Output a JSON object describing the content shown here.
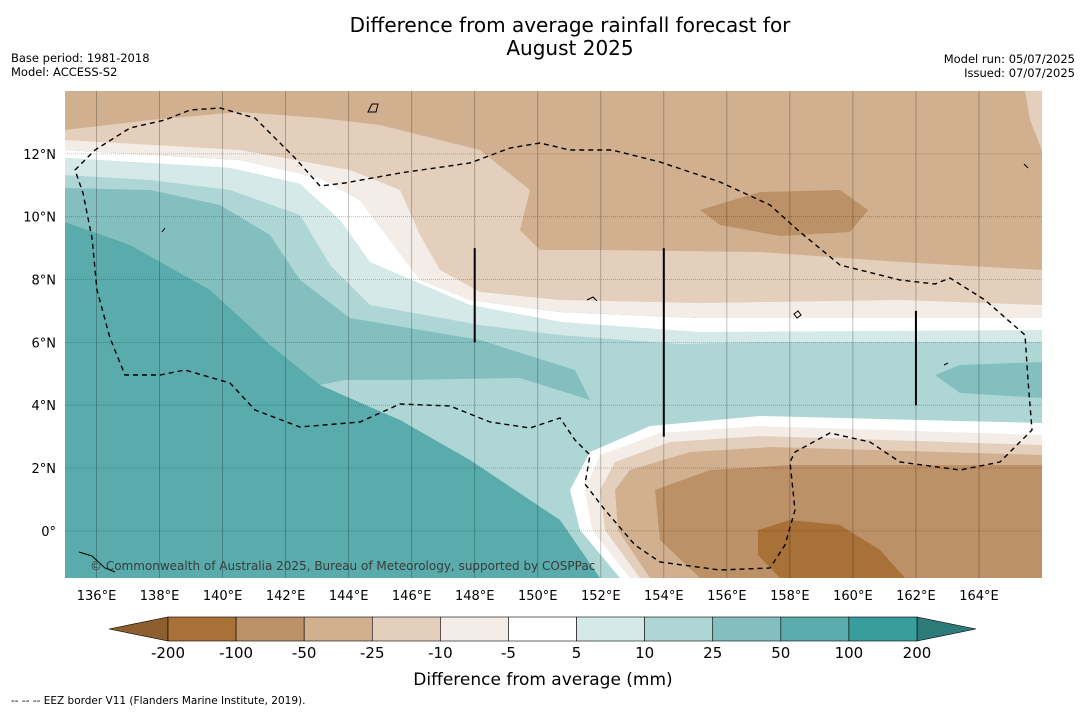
{
  "title": "Difference from average rainfall forecast for\nAugust 2025",
  "title_line1": "Difference from average rainfall forecast for",
  "title_line2": "August 2025",
  "info_left": [
    "Base period: 1981-2018",
    "Model: ACCESS-S2"
  ],
  "info_right": [
    "Model run: 05/07/2025",
    "Issued: 07/07/2025"
  ],
  "copyright": "© Commonwealth of Australia 2025, Bureau of Meteorology, supported by COSPPac",
  "footnote": "--  --  -- EEZ border V11 (Flanders Marine Institute, 2019).",
  "map": {
    "lon_range": [
      135,
      166
    ],
    "lat_range": [
      -1.5,
      14
    ],
    "lon_ticks": [
      {
        "value": 136,
        "label": "136°E"
      },
      {
        "value": 138,
        "label": "138°E"
      },
      {
        "value": 140,
        "label": "140°E"
      },
      {
        "value": 142,
        "label": "142°E"
      },
      {
        "value": 144,
        "label": "144°E"
      },
      {
        "value": 146,
        "label": "146°E"
      },
      {
        "value": 148,
        "label": "148°E"
      },
      {
        "value": 150,
        "label": "150°E"
      },
      {
        "value": 152,
        "label": "152°E"
      },
      {
        "value": 154,
        "label": "154°E"
      },
      {
        "value": 156,
        "label": "156°E"
      },
      {
        "value": 158,
        "label": "158°E"
      },
      {
        "value": 160,
        "label": "160°E"
      },
      {
        "value": 162,
        "label": "162°E"
      },
      {
        "value": 164,
        "label": "164°E"
      }
    ],
    "lat_ticks": [
      {
        "value": 12,
        "label": "12°N"
      },
      {
        "value": 10,
        "label": "10°N"
      },
      {
        "value": 8,
        "label": "8°N"
      },
      {
        "value": 6,
        "label": "6°N"
      },
      {
        "value": 4,
        "label": "4°N"
      },
      {
        "value": 2,
        "label": "2°N"
      },
      {
        "value": 0,
        "label": "0°"
      }
    ],
    "grid": true,
    "eez_style": "dashed",
    "regional_dividers": [
      {
        "lon": 148,
        "lat_top": 9.0,
        "lat_bottom": 6.0
      },
      {
        "lon": 154,
        "lat_top": 9.0,
        "lat_bottom": 3.0
      },
      {
        "lon": 162,
        "lat_top": 7.0,
        "lat_bottom": 4.0
      }
    ]
  },
  "colorbar": {
    "title": "Difference from average (mm)",
    "levels": [
      "-200",
      "-100",
      "-50",
      "-25",
      "-10",
      "-5",
      "5",
      "10",
      "25",
      "50",
      "100",
      "200"
    ],
    "colors": [
      "#a87138",
      "#bd9167",
      "#d0b08e",
      "#e3cfbc",
      "#f4ece6",
      "#ffffff",
      "#d5e9e8",
      "#aed6d5",
      "#83bfbf",
      "#5aabab",
      "#389e9b"
    ],
    "under_color": "#8e5f2e",
    "over_color": "#2d7b78",
    "extend": "both"
  }
}
